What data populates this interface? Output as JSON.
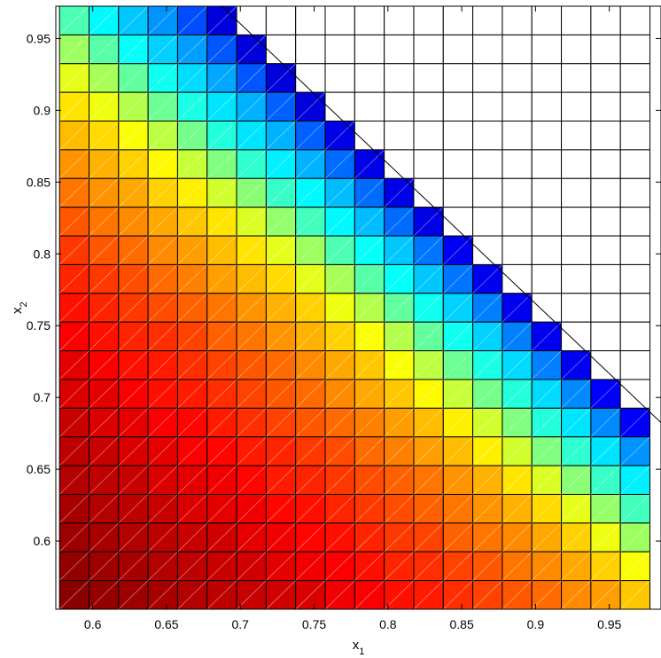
{
  "chart_data": {
    "type": "heatmap",
    "title": "",
    "xlabel": {
      "base": "x",
      "sub": "1"
    },
    "ylabel": {
      "base": "x",
      "sub": "2"
    },
    "xlim": [
      0.575,
      0.985
    ],
    "ylim": [
      0.5525,
      0.9725
    ],
    "x_ticks": [
      0.6,
      0.65,
      0.7,
      0.75,
      0.8,
      0.85,
      0.9,
      0.95
    ],
    "x_tick_labels": [
      "0.6",
      "0.65",
      "0.7",
      "0.75",
      "0.8",
      "0.85",
      "0.9",
      "0.95"
    ],
    "y_ticks": [
      0.6,
      0.65,
      0.7,
      0.75,
      0.8,
      0.85,
      0.9,
      0.95
    ],
    "y_tick_labels": [
      "0.6",
      "0.65",
      "0.7",
      "0.75",
      "0.8",
      "0.85",
      "0.9",
      "0.95"
    ],
    "x_centers": [
      0.5875,
      0.6075,
      0.6275,
      0.6475,
      0.6675,
      0.6875,
      0.7075,
      0.7275,
      0.7475,
      0.7675,
      0.7875,
      0.8075,
      0.8275,
      0.8475,
      0.8675,
      0.8875,
      0.9075,
      0.9275,
      0.9475,
      0.9675
    ],
    "y_centers": [
      0.9625,
      0.9425,
      0.9225,
      0.9025,
      0.8825,
      0.8625,
      0.8425,
      0.8225,
      0.8025,
      0.7825,
      0.7625,
      0.7425,
      0.7225,
      0.7025,
      0.6825,
      0.6625,
      0.6425,
      0.6225,
      0.6025,
      0.5825,
      0.5625
    ],
    "cell_step": 0.02,
    "values": [
      [
        0.45,
        0.37,
        0.32,
        0.27,
        0.2,
        0.09,
        null,
        null,
        null,
        null,
        null,
        null,
        null,
        null,
        null,
        null,
        null,
        null,
        null,
        null
      ],
      [
        0.53,
        0.46,
        0.38,
        0.33,
        0.28,
        0.21,
        0.09,
        null,
        null,
        null,
        null,
        null,
        null,
        null,
        null,
        null,
        null,
        null,
        null,
        null
      ],
      [
        0.6,
        0.54,
        0.47,
        0.39,
        0.34,
        0.29,
        0.21,
        0.09,
        null,
        null,
        null,
        null,
        null,
        null,
        null,
        null,
        null,
        null,
        null,
        null
      ],
      [
        0.65,
        0.61,
        0.55,
        0.48,
        0.4,
        0.35,
        0.3,
        0.22,
        0.09,
        null,
        null,
        null,
        null,
        null,
        null,
        null,
        null,
        null,
        null,
        null
      ],
      [
        0.69,
        0.66,
        0.62,
        0.56,
        0.49,
        0.41,
        0.35,
        0.3,
        0.22,
        0.1,
        null,
        null,
        null,
        null,
        null,
        null,
        null,
        null,
        null,
        null
      ],
      [
        0.73,
        0.7,
        0.67,
        0.63,
        0.57,
        0.5,
        0.42,
        0.36,
        0.3,
        0.23,
        0.1,
        null,
        null,
        null,
        null,
        null,
        null,
        null,
        null,
        null
      ],
      [
        0.76,
        0.73,
        0.71,
        0.67,
        0.64,
        0.58,
        0.51,
        0.43,
        0.37,
        0.31,
        0.23,
        0.1,
        null,
        null,
        null,
        null,
        null,
        null,
        null,
        null
      ],
      [
        0.79,
        0.76,
        0.74,
        0.71,
        0.68,
        0.65,
        0.59,
        0.52,
        0.44,
        0.37,
        0.31,
        0.23,
        0.1,
        null,
        null,
        null,
        null,
        null,
        null,
        null
      ],
      [
        0.82,
        0.79,
        0.77,
        0.74,
        0.72,
        0.69,
        0.65,
        0.6,
        0.53,
        0.45,
        0.38,
        0.32,
        0.24,
        0.11,
        null,
        null,
        null,
        null,
        null,
        null
      ],
      [
        0.84,
        0.82,
        0.8,
        0.77,
        0.75,
        0.72,
        0.69,
        0.66,
        0.6,
        0.54,
        0.46,
        0.38,
        0.32,
        0.24,
        0.11,
        null,
        null,
        null,
        null,
        null
      ],
      [
        0.86,
        0.84,
        0.82,
        0.8,
        0.78,
        0.76,
        0.73,
        0.7,
        0.67,
        0.61,
        0.55,
        0.47,
        0.39,
        0.33,
        0.25,
        0.11,
        null,
        null,
        null,
        null
      ],
      [
        0.88,
        0.86,
        0.84,
        0.83,
        0.81,
        0.78,
        0.76,
        0.73,
        0.7,
        0.67,
        0.62,
        0.55,
        0.47,
        0.39,
        0.33,
        0.25,
        0.11,
        null,
        null,
        null
      ],
      [
        0.9,
        0.88,
        0.86,
        0.85,
        0.83,
        0.81,
        0.79,
        0.77,
        0.74,
        0.71,
        0.68,
        0.62,
        0.56,
        0.48,
        0.4,
        0.34,
        0.25,
        0.11,
        null,
        null
      ],
      [
        0.91,
        0.9,
        0.88,
        0.86,
        0.85,
        0.83,
        0.81,
        0.79,
        0.77,
        0.74,
        0.71,
        0.68,
        0.63,
        0.57,
        0.49,
        0.41,
        0.34,
        0.26,
        0.12,
        null
      ],
      [
        0.93,
        0.91,
        0.9,
        0.88,
        0.87,
        0.85,
        0.83,
        0.81,
        0.79,
        0.77,
        0.75,
        0.72,
        0.69,
        0.64,
        0.58,
        0.5,
        0.41,
        0.35,
        0.26,
        0.12
      ],
      [
        0.94,
        0.93,
        0.91,
        0.9,
        0.88,
        0.87,
        0.85,
        0.84,
        0.82,
        0.8,
        0.77,
        0.75,
        0.72,
        0.69,
        0.64,
        0.58,
        0.5,
        0.42,
        0.35,
        0.27
      ],
      [
        0.95,
        0.94,
        0.93,
        0.91,
        0.9,
        0.89,
        0.87,
        0.85,
        0.84,
        0.82,
        0.8,
        0.78,
        0.76,
        0.73,
        0.7,
        0.65,
        0.59,
        0.51,
        0.43,
        0.36
      ],
      [
        0.96,
        0.95,
        0.94,
        0.93,
        0.91,
        0.9,
        0.89,
        0.87,
        0.86,
        0.84,
        0.82,
        0.8,
        0.78,
        0.76,
        0.73,
        0.7,
        0.66,
        0.6,
        0.52,
        0.44
      ],
      [
        0.97,
        0.96,
        0.95,
        0.94,
        0.93,
        0.92,
        0.9,
        0.89,
        0.87,
        0.86,
        0.84,
        0.82,
        0.81,
        0.78,
        0.76,
        0.74,
        0.71,
        0.67,
        0.61,
        0.53
      ],
      [
        0.98,
        0.97,
        0.96,
        0.95,
        0.94,
        0.93,
        0.92,
        0.9,
        0.89,
        0.88,
        0.86,
        0.84,
        0.83,
        0.81,
        0.79,
        0.76,
        0.74,
        0.71,
        0.67,
        0.62
      ],
      [
        0.99,
        0.98,
        0.97,
        0.96,
        0.95,
        0.94,
        0.93,
        0.92,
        0.91,
        0.89,
        0.88,
        0.86,
        0.85,
        0.83,
        0.81,
        0.79,
        0.77,
        0.74,
        0.72,
        0.68
      ]
    ],
    "colormap": "jet",
    "clim": [
      0,
      1
    ],
    "boundary_line": {
      "x1": 0.6875,
      "y1": 0.9725,
      "x2": 0.985,
      "y2": 0.6825
    },
    "grid": true,
    "legend": "none"
  }
}
